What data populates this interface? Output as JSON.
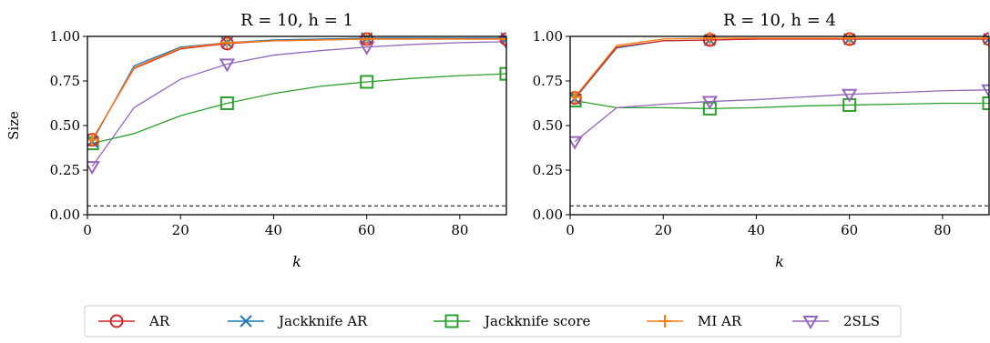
{
  "chart_data": [
    {
      "type": "line",
      "title": "R = 10, h = 1",
      "xlabel": "k",
      "ylabel": "Size",
      "xlim": [
        0,
        90
      ],
      "ylim": [
        0,
        1
      ],
      "xticks": [
        "0",
        "20",
        "40",
        "60",
        "80"
      ],
      "yticks": [
        "0.00",
        "0.25",
        "0.50",
        "0.75",
        "1.00"
      ],
      "reference_line": 0.05,
      "grid": false,
      "series": [
        {
          "name": "AR",
          "color": "#d62728",
          "marker": "circle",
          "x": [
            1,
            10,
            20,
            30,
            40,
            50,
            60,
            70,
            80,
            90
          ],
          "y": [
            0.42,
            0.82,
            0.93,
            0.96,
            0.975,
            0.98,
            0.985,
            0.985,
            0.985,
            0.985
          ]
        },
        {
          "name": "Jackknife AR",
          "color": "#1f77b4",
          "marker": "x",
          "x": [
            1,
            10,
            20,
            30,
            40,
            50,
            60,
            70,
            80,
            90
          ],
          "y": [
            0.41,
            0.835,
            0.94,
            0.965,
            0.98,
            0.985,
            0.99,
            0.99,
            0.99,
            0.99
          ]
        },
        {
          "name": "Jackknife score",
          "color": "#2ca02c",
          "marker": "square",
          "x": [
            1,
            10,
            20,
            30,
            40,
            50,
            60,
            70,
            80,
            90
          ],
          "y": [
            0.4,
            0.455,
            0.555,
            0.625,
            0.68,
            0.72,
            0.745,
            0.765,
            0.78,
            0.79
          ]
        },
        {
          "name": "MI AR",
          "color": "#ff7f0e",
          "marker": "plus",
          "x": [
            1,
            10,
            20,
            30,
            40,
            50,
            60,
            70,
            80,
            90
          ],
          "y": [
            0.42,
            0.825,
            0.935,
            0.965,
            0.975,
            0.98,
            0.985,
            0.985,
            0.985,
            0.985
          ]
        },
        {
          "name": "2SLS",
          "color": "#9467bd",
          "marker": "triangle-down",
          "x": [
            1,
            10,
            20,
            30,
            40,
            50,
            60,
            70,
            80,
            90
          ],
          "y": [
            0.27,
            0.6,
            0.76,
            0.845,
            0.895,
            0.92,
            0.94,
            0.955,
            0.965,
            0.97
          ]
        }
      ]
    },
    {
      "type": "line",
      "title": "R = 10, h = 4",
      "xlabel": "k",
      "ylabel": "",
      "xlim": [
        0,
        90
      ],
      "ylim": [
        0,
        1
      ],
      "xticks": [
        "0",
        "20",
        "40",
        "60",
        "80"
      ],
      "yticks": [
        "0.00",
        "0.25",
        "0.50",
        "0.75",
        "1.00"
      ],
      "reference_line": 0.05,
      "grid": false,
      "series": [
        {
          "name": "AR",
          "color": "#d62728",
          "marker": "circle",
          "x": [
            1,
            10,
            20,
            30,
            40,
            50,
            60,
            70,
            80,
            90
          ],
          "y": [
            0.655,
            0.94,
            0.975,
            0.98,
            0.985,
            0.985,
            0.985,
            0.985,
            0.985,
            0.985
          ]
        },
        {
          "name": "Jackknife AR",
          "color": "#1f77b4",
          "marker": "x",
          "x": [
            1,
            10,
            20,
            30,
            40,
            50,
            60,
            70,
            80,
            90
          ],
          "y": [
            0.65,
            0.935,
            0.975,
            0.98,
            0.985,
            0.985,
            0.985,
            0.985,
            0.985,
            0.985
          ]
        },
        {
          "name": "Jackknife score",
          "color": "#2ca02c",
          "marker": "square",
          "x": [
            1,
            10,
            20,
            30,
            40,
            50,
            60,
            70,
            80,
            90
          ],
          "y": [
            0.64,
            0.6,
            0.6,
            0.595,
            0.6,
            0.61,
            0.615,
            0.62,
            0.625,
            0.625
          ]
        },
        {
          "name": "MI AR",
          "color": "#ff7f0e",
          "marker": "plus",
          "x": [
            1,
            10,
            20,
            30,
            40,
            50,
            60,
            70,
            80,
            90
          ],
          "y": [
            0.66,
            0.95,
            0.985,
            0.99,
            0.99,
            0.99,
            0.99,
            0.99,
            0.99,
            0.99
          ]
        },
        {
          "name": "2SLS",
          "color": "#9467bd",
          "marker": "triangle-down",
          "x": [
            1,
            10,
            20,
            30,
            40,
            50,
            60,
            70,
            80,
            90
          ],
          "y": [
            0.41,
            0.6,
            0.62,
            0.635,
            0.645,
            0.66,
            0.675,
            0.685,
            0.695,
            0.7
          ]
        }
      ]
    }
  ],
  "legend": {
    "placement": "bottom-center",
    "items": [
      "AR",
      "Jackknife AR",
      "Jackknife score",
      "MI AR",
      "2SLS"
    ]
  }
}
